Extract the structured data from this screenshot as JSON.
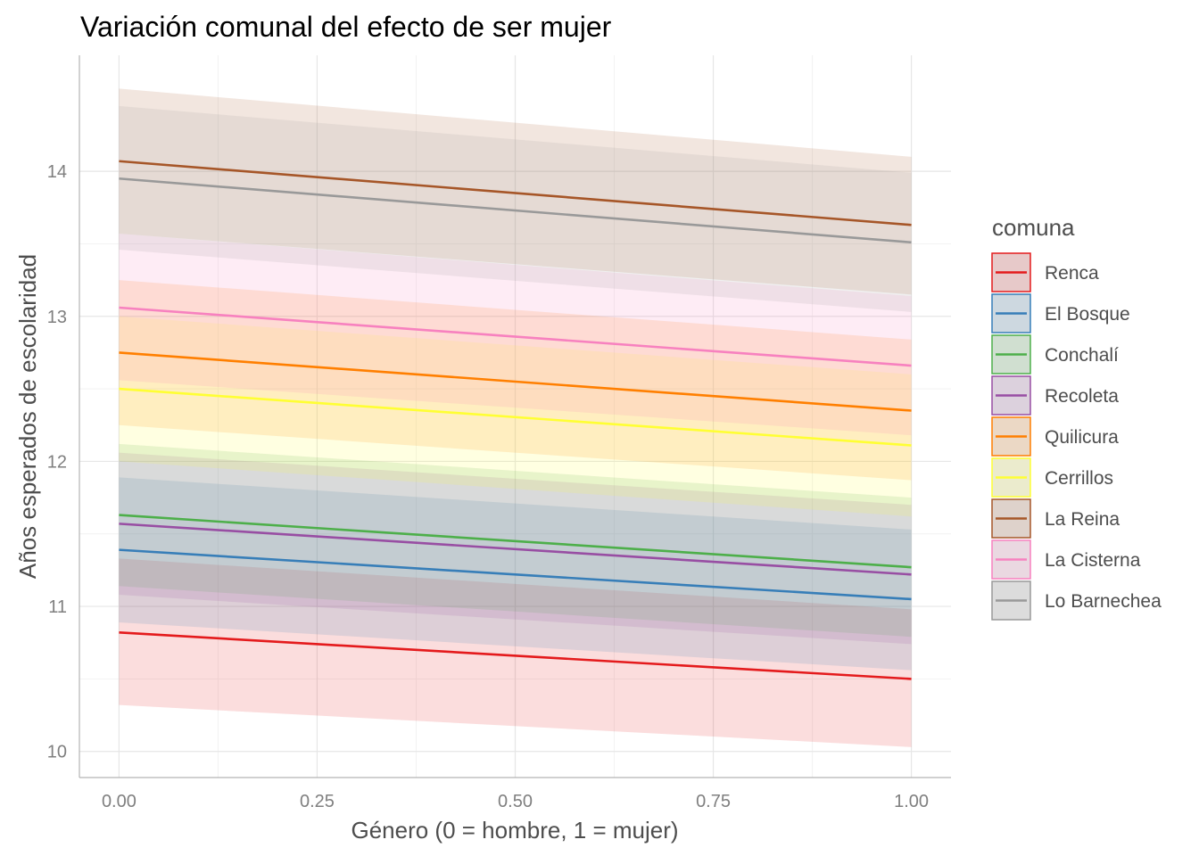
{
  "chart_data": {
    "type": "line",
    "title": "Variación comunal del efecto de ser mujer",
    "xlabel": "Género (0 = hombre, 1 = mujer)",
    "ylabel": "Años esperados de escolaridad",
    "xlim": [
      -0.05,
      1.05
    ],
    "ylim": [
      9.82,
      14.8
    ],
    "xticks": [
      0,
      0.25,
      0.5,
      0.75,
      1
    ],
    "xtick_labels": [
      "0.00",
      "0.25",
      "0.50",
      "0.75",
      "1.00"
    ],
    "yticks": [
      10,
      11,
      12,
      13,
      14
    ],
    "ytick_labels": [
      "10",
      "11",
      "12",
      "13",
      "14"
    ],
    "grid": true,
    "legend": {
      "title": "comuna",
      "position": "right"
    },
    "x": [
      0,
      1
    ],
    "series": [
      {
        "name": "Renca",
        "color": "#e41a1c",
        "values": [
          10.82,
          10.5
        ],
        "lower": [
          10.32,
          10.03
        ],
        "upper": [
          11.33,
          10.98
        ]
      },
      {
        "name": "El Bosque",
        "color": "#377eb8",
        "values": [
          11.39,
          11.05
        ],
        "lower": [
          10.89,
          10.56
        ],
        "upper": [
          11.89,
          11.53
        ]
      },
      {
        "name": "Conchalí",
        "color": "#4daf4a",
        "values": [
          11.63,
          11.27
        ],
        "lower": [
          11.14,
          10.79
        ],
        "upper": [
          12.12,
          11.75
        ]
      },
      {
        "name": "Recoleta",
        "color": "#984ea3",
        "values": [
          11.57,
          11.22
        ],
        "lower": [
          11.08,
          10.74
        ],
        "upper": [
          12.06,
          11.7
        ]
      },
      {
        "name": "Quilicura",
        "color": "#ff7f00",
        "values": [
          12.75,
          12.35
        ],
        "lower": [
          12.25,
          11.87
        ],
        "upper": [
          13.25,
          12.84
        ]
      },
      {
        "name": "Cerrillos",
        "color": "#ffff33",
        "values": [
          12.5,
          12.11
        ],
        "lower": [
          12.0,
          11.62
        ],
        "upper": [
          13.0,
          12.6
        ]
      },
      {
        "name": "La Reina",
        "color": "#a65628",
        "values": [
          14.07,
          13.63
        ],
        "lower": [
          13.57,
          13.15
        ],
        "upper": [
          14.57,
          14.1
        ]
      },
      {
        "name": "La Cisterna",
        "color": "#f781bf",
        "values": [
          13.06,
          12.66
        ],
        "lower": [
          12.56,
          12.18
        ],
        "upper": [
          13.57,
          13.14
        ]
      },
      {
        "name": "Lo Barnechea",
        "color": "#999999",
        "values": [
          13.95,
          13.51
        ],
        "lower": [
          13.46,
          13.03
        ],
        "upper": [
          14.45,
          13.99
        ]
      }
    ]
  }
}
